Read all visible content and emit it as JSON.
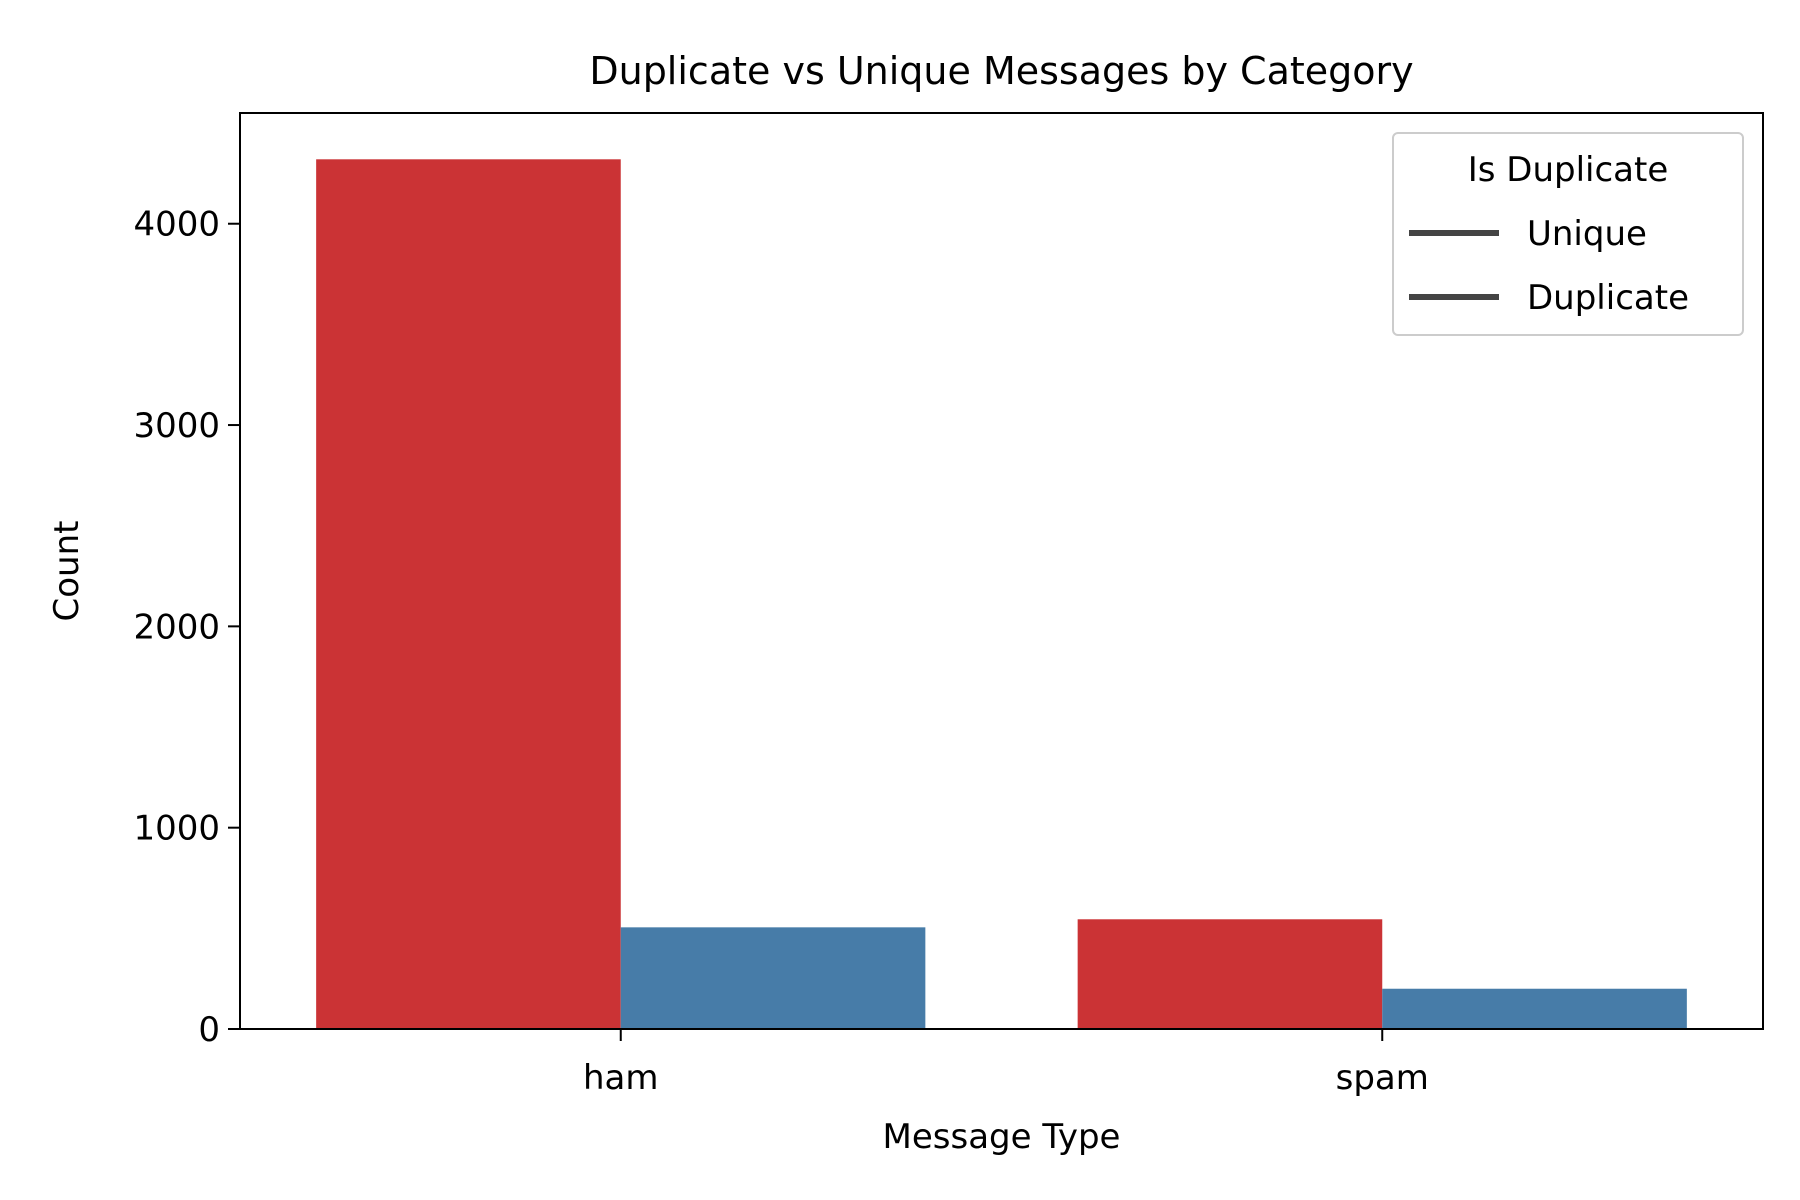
{
  "chart_data": {
    "type": "bar",
    "title": "Duplicate vs Unique Messages by Category",
    "xlabel": "Message Type",
    "ylabel": "Count",
    "categories": [
      "ham",
      "spam"
    ],
    "series": [
      {
        "name": "Unique",
        "values": [
          4320,
          545
        ],
        "color": "#cb3335"
      },
      {
        "name": "Duplicate",
        "values": [
          505,
          200
        ],
        "color": "#477ca8"
      }
    ],
    "ylim": [
      0,
      4550
    ],
    "yticks": [
      0,
      1000,
      2000,
      3000,
      4000
    ],
    "grid": false,
    "legend": {
      "title": "Is Duplicate",
      "placement": "top-right",
      "entries": [
        "Unique",
        "Duplicate"
      ],
      "marker_color": "#444444"
    }
  }
}
